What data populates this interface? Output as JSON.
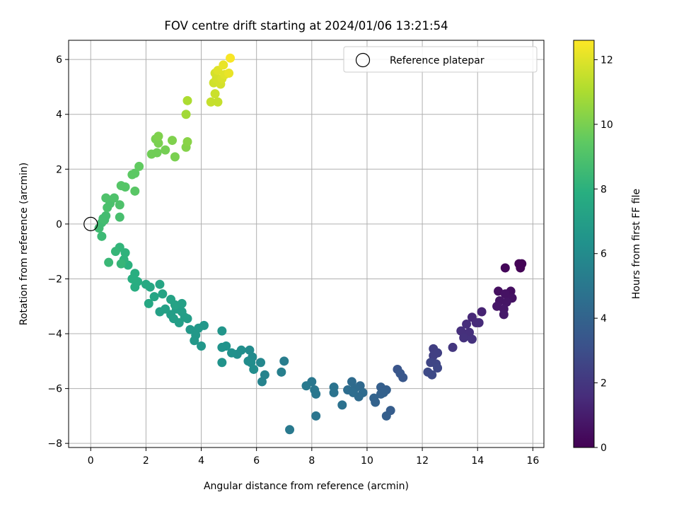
{
  "chart_data": {
    "type": "scatter",
    "title": "FOV centre drift starting at 2024/01/06 13:21:54",
    "xlabel": "Angular distance from reference (arcmin)",
    "ylabel": "Rotation from reference (arcmin)",
    "xlim": [
      -0.8,
      16.4
    ],
    "ylim": [
      -8.15,
      6.7
    ],
    "xticks": [
      0,
      2,
      4,
      6,
      8,
      10,
      12,
      14,
      16
    ],
    "yticks": [
      -8,
      -6,
      -4,
      -2,
      0,
      2,
      4,
      6
    ],
    "grid": true,
    "legend": {
      "label": "Reference platepar",
      "placement": "top-right"
    },
    "reference_point": {
      "x": 0,
      "y": 0
    },
    "colorbar": {
      "label": "Hours from first FF file",
      "colormap": "viridis",
      "range": [
        0,
        12.6
      ],
      "ticks": [
        0,
        2,
        4,
        6,
        8,
        10,
        12
      ]
    },
    "points": [
      {
        "x": 15.5,
        "y": -1.45,
        "c": 0.1
      },
      {
        "x": 15.6,
        "y": -1.45,
        "c": 0.1
      },
      {
        "x": 15.55,
        "y": -1.6,
        "c": 0.1
      },
      {
        "x": 15.0,
        "y": -1.6,
        "c": 0.2
      },
      {
        "x": 14.75,
        "y": -2.45,
        "c": 0.5
      },
      {
        "x": 15.2,
        "y": -2.45,
        "c": 0.5
      },
      {
        "x": 15.0,
        "y": -2.55,
        "c": 0.6
      },
      {
        "x": 15.25,
        "y": -2.7,
        "c": 0.6
      },
      {
        "x": 14.8,
        "y": -2.8,
        "c": 0.7
      },
      {
        "x": 15.05,
        "y": -2.85,
        "c": 0.7
      },
      {
        "x": 14.7,
        "y": -3.0,
        "c": 0.8
      },
      {
        "x": 14.95,
        "y": -3.1,
        "c": 0.8
      },
      {
        "x": 14.95,
        "y": -3.3,
        "c": 0.9
      },
      {
        "x": 14.15,
        "y": -3.2,
        "c": 1.2
      },
      {
        "x": 13.8,
        "y": -3.4,
        "c": 1.4
      },
      {
        "x": 13.95,
        "y": -3.6,
        "c": 1.5
      },
      {
        "x": 14.05,
        "y": -3.6,
        "c": 1.5
      },
      {
        "x": 13.6,
        "y": -3.65,
        "c": 1.6
      },
      {
        "x": 13.4,
        "y": -3.9,
        "c": 1.7
      },
      {
        "x": 13.7,
        "y": -3.95,
        "c": 1.7
      },
      {
        "x": 13.5,
        "y": -4.15,
        "c": 1.8
      },
      {
        "x": 13.8,
        "y": -4.2,
        "c": 1.8
      },
      {
        "x": 13.1,
        "y": -4.5,
        "c": 2.0
      },
      {
        "x": 12.4,
        "y": -4.55,
        "c": 2.3
      },
      {
        "x": 12.55,
        "y": -4.7,
        "c": 2.4
      },
      {
        "x": 12.4,
        "y": -4.8,
        "c": 2.4
      },
      {
        "x": 12.3,
        "y": -5.05,
        "c": 2.6
      },
      {
        "x": 12.5,
        "y": -5.1,
        "c": 2.6
      },
      {
        "x": 12.55,
        "y": -5.25,
        "c": 2.7
      },
      {
        "x": 12.2,
        "y": -5.4,
        "c": 2.8
      },
      {
        "x": 12.35,
        "y": -5.5,
        "c": 2.8
      },
      {
        "x": 11.1,
        "y": -5.3,
        "c": 3.3
      },
      {
        "x": 11.2,
        "y": -5.45,
        "c": 3.4
      },
      {
        "x": 11.3,
        "y": -5.6,
        "c": 3.4
      },
      {
        "x": 10.5,
        "y": -5.95,
        "c": 3.8
      },
      {
        "x": 10.7,
        "y": -6.05,
        "c": 3.8
      },
      {
        "x": 10.6,
        "y": -6.15,
        "c": 3.9
      },
      {
        "x": 10.5,
        "y": -6.2,
        "c": 3.9
      },
      {
        "x": 10.25,
        "y": -6.35,
        "c": 4.0
      },
      {
        "x": 10.3,
        "y": -6.5,
        "c": 4.0
      },
      {
        "x": 10.85,
        "y": -6.8,
        "c": 3.7
      },
      {
        "x": 10.7,
        "y": -7.0,
        "c": 3.8
      },
      {
        "x": 9.75,
        "y": -5.9,
        "c": 4.3
      },
      {
        "x": 9.45,
        "y": -5.75,
        "c": 4.4
      },
      {
        "x": 9.55,
        "y": -6.0,
        "c": 4.4
      },
      {
        "x": 9.3,
        "y": -6.05,
        "c": 4.5
      },
      {
        "x": 9.85,
        "y": -6.15,
        "c": 4.4
      },
      {
        "x": 9.7,
        "y": -6.3,
        "c": 4.4
      },
      {
        "x": 9.5,
        "y": -6.15,
        "c": 4.5
      },
      {
        "x": 9.1,
        "y": -6.6,
        "c": 4.7
      },
      {
        "x": 8.8,
        "y": -5.95,
        "c": 4.8
      },
      {
        "x": 8.8,
        "y": -6.15,
        "c": 4.8
      },
      {
        "x": 8.0,
        "y": -5.75,
        "c": 5.0
      },
      {
        "x": 7.8,
        "y": -5.9,
        "c": 5.1
      },
      {
        "x": 8.1,
        "y": -6.05,
        "c": 5.0
      },
      {
        "x": 8.15,
        "y": -6.2,
        "c": 5.0
      },
      {
        "x": 8.15,
        "y": -7.0,
        "c": 4.9
      },
      {
        "x": 7.2,
        "y": -7.5,
        "c": 5.1
      },
      {
        "x": 7.0,
        "y": -5.0,
        "c": 5.3
      },
      {
        "x": 6.9,
        "y": -5.4,
        "c": 5.4
      },
      {
        "x": 6.3,
        "y": -5.5,
        "c": 5.6
      },
      {
        "x": 6.2,
        "y": -5.75,
        "c": 5.6
      },
      {
        "x": 6.15,
        "y": -5.05,
        "c": 5.8
      },
      {
        "x": 5.75,
        "y": -4.6,
        "c": 6.0
      },
      {
        "x": 5.85,
        "y": -4.85,
        "c": 6.0
      },
      {
        "x": 5.8,
        "y": -5.05,
        "c": 6.1
      },
      {
        "x": 5.9,
        "y": -5.3,
        "c": 6.1
      },
      {
        "x": 5.7,
        "y": -5.0,
        "c": 6.1
      },
      {
        "x": 5.45,
        "y": -4.6,
        "c": 6.2
      },
      {
        "x": 5.3,
        "y": -4.75,
        "c": 6.2
      },
      {
        "x": 5.1,
        "y": -4.7,
        "c": 6.3
      },
      {
        "x": 4.9,
        "y": -4.45,
        "c": 6.4
      },
      {
        "x": 4.75,
        "y": -4.5,
        "c": 6.4
      },
      {
        "x": 4.75,
        "y": -3.9,
        "c": 6.5
      },
      {
        "x": 4.75,
        "y": -5.05,
        "c": 6.4
      },
      {
        "x": 4.1,
        "y": -3.7,
        "c": 6.6
      },
      {
        "x": 3.9,
        "y": -3.8,
        "c": 6.7
      },
      {
        "x": 3.6,
        "y": -3.85,
        "c": 6.7
      },
      {
        "x": 3.8,
        "y": -4.05,
        "c": 6.7
      },
      {
        "x": 3.75,
        "y": -4.25,
        "c": 6.7
      },
      {
        "x": 4.0,
        "y": -4.45,
        "c": 6.6
      },
      {
        "x": 3.5,
        "y": -3.45,
        "c": 6.9
      },
      {
        "x": 3.3,
        "y": -3.2,
        "c": 7.0
      },
      {
        "x": 3.1,
        "y": -3.1,
        "c": 7.0
      },
      {
        "x": 2.9,
        "y": -3.3,
        "c": 7.0
      },
      {
        "x": 3.0,
        "y": -3.45,
        "c": 7.0
      },
      {
        "x": 3.2,
        "y": -3.6,
        "c": 7.0
      },
      {
        "x": 3.4,
        "y": -3.4,
        "c": 7.0
      },
      {
        "x": 2.7,
        "y": -3.1,
        "c": 7.1
      },
      {
        "x": 2.5,
        "y": -3.2,
        "c": 7.1
      },
      {
        "x": 2.9,
        "y": -2.75,
        "c": 7.2
      },
      {
        "x": 3.05,
        "y": -2.95,
        "c": 7.2
      },
      {
        "x": 3.3,
        "y": -2.9,
        "c": 7.1
      },
      {
        "x": 2.6,
        "y": -2.55,
        "c": 7.3
      },
      {
        "x": 2.5,
        "y": -2.2,
        "c": 7.4
      },
      {
        "x": 2.3,
        "y": -2.65,
        "c": 7.4
      },
      {
        "x": 2.1,
        "y": -2.9,
        "c": 7.5
      },
      {
        "x": 2.15,
        "y": -2.3,
        "c": 7.5
      },
      {
        "x": 2.0,
        "y": -2.2,
        "c": 7.6
      },
      {
        "x": 1.6,
        "y": -2.3,
        "c": 7.8
      },
      {
        "x": 1.7,
        "y": -2.1,
        "c": 7.8
      },
      {
        "x": 1.6,
        "y": -1.8,
        "c": 7.9
      },
      {
        "x": 1.5,
        "y": -2.0,
        "c": 7.9
      },
      {
        "x": 1.35,
        "y": -1.5,
        "c": 8.0
      },
      {
        "x": 1.2,
        "y": -1.3,
        "c": 8.1
      },
      {
        "x": 1.25,
        "y": -1.05,
        "c": 8.1
      },
      {
        "x": 1.05,
        "y": -0.85,
        "c": 8.2
      },
      {
        "x": 0.9,
        "y": -1.0,
        "c": 8.3
      },
      {
        "x": 1.1,
        "y": -1.45,
        "c": 8.3
      },
      {
        "x": 0.65,
        "y": -1.4,
        "c": 8.4
      },
      {
        "x": 0.4,
        "y": -0.45,
        "c": 8.5
      },
      {
        "x": 0.3,
        "y": -0.15,
        "c": 8.6
      },
      {
        "x": 0.4,
        "y": 0.05,
        "c": 8.6
      },
      {
        "x": 0.5,
        "y": 0.15,
        "c": 8.7
      },
      {
        "x": 0.55,
        "y": 0.3,
        "c": 8.7
      },
      {
        "x": 0.45,
        "y": 0.2,
        "c": 8.7
      },
      {
        "x": 1.05,
        "y": 0.25,
        "c": 8.8
      },
      {
        "x": 0.6,
        "y": 0.6,
        "c": 8.9
      },
      {
        "x": 0.7,
        "y": 0.75,
        "c": 8.9
      },
      {
        "x": 0.55,
        "y": 0.95,
        "c": 9.0
      },
      {
        "x": 0.85,
        "y": 0.95,
        "c": 9.0
      },
      {
        "x": 1.05,
        "y": 0.7,
        "c": 9.0
      },
      {
        "x": 1.1,
        "y": 1.4,
        "c": 9.2
      },
      {
        "x": 1.25,
        "y": 1.35,
        "c": 9.2
      },
      {
        "x": 1.6,
        "y": 1.2,
        "c": 9.3
      },
      {
        "x": 1.5,
        "y": 1.8,
        "c": 9.4
      },
      {
        "x": 1.6,
        "y": 1.85,
        "c": 9.4
      },
      {
        "x": 1.75,
        "y": 2.1,
        "c": 9.5
      },
      {
        "x": 2.2,
        "y": 2.55,
        "c": 9.8
      },
      {
        "x": 2.4,
        "y": 2.6,
        "c": 9.8
      },
      {
        "x": 2.7,
        "y": 2.7,
        "c": 9.9
      },
      {
        "x": 2.45,
        "y": 2.95,
        "c": 10.0
      },
      {
        "x": 2.35,
        "y": 3.1,
        "c": 10.0
      },
      {
        "x": 2.45,
        "y": 3.2,
        "c": 10.1
      },
      {
        "x": 2.95,
        "y": 3.05,
        "c": 10.1
      },
      {
        "x": 3.05,
        "y": 2.45,
        "c": 10.0
      },
      {
        "x": 3.45,
        "y": 2.8,
        "c": 10.2
      },
      {
        "x": 3.5,
        "y": 3.0,
        "c": 10.3
      },
      {
        "x": 3.45,
        "y": 4.0,
        "c": 10.8
      },
      {
        "x": 3.5,
        "y": 4.5,
        "c": 11.0
      },
      {
        "x": 4.35,
        "y": 4.45,
        "c": 11.5
      },
      {
        "x": 4.6,
        "y": 4.45,
        "c": 11.5
      },
      {
        "x": 4.5,
        "y": 4.75,
        "c": 11.6
      },
      {
        "x": 4.45,
        "y": 5.15,
        "c": 11.7
      },
      {
        "x": 4.55,
        "y": 5.3,
        "c": 11.8
      },
      {
        "x": 4.5,
        "y": 5.5,
        "c": 11.8
      },
      {
        "x": 4.7,
        "y": 5.1,
        "c": 11.8
      },
      {
        "x": 4.75,
        "y": 5.3,
        "c": 11.9
      },
      {
        "x": 4.85,
        "y": 5.45,
        "c": 12.0
      },
      {
        "x": 4.6,
        "y": 5.6,
        "c": 12.0
      },
      {
        "x": 4.8,
        "y": 5.8,
        "c": 12.2
      },
      {
        "x": 5.0,
        "y": 5.5,
        "c": 12.2
      },
      {
        "x": 5.05,
        "y": 6.05,
        "c": 12.5
      }
    ]
  }
}
